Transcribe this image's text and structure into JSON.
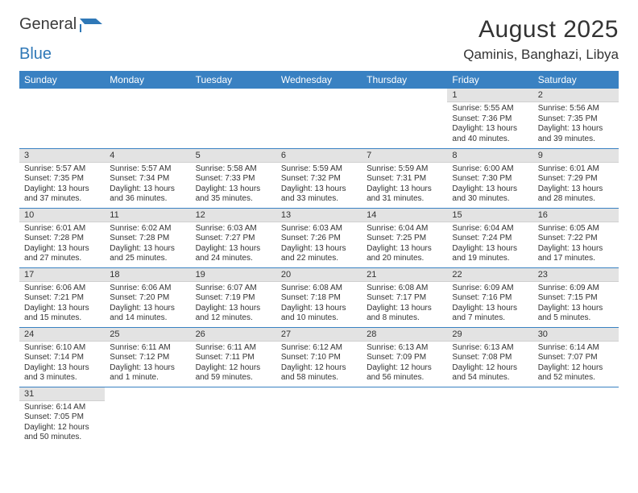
{
  "brand": {
    "text1": "General",
    "text2": "Blue"
  },
  "title": "August 2025",
  "location": "Qaminis, Banghazi, Libya",
  "colors": {
    "header_bg": "#3981c2",
    "header_text": "#ffffff",
    "daynum_bg": "#e3e3e3",
    "row_border": "#3981c2",
    "text": "#333333",
    "brand_blue": "#2f78b7"
  },
  "typography": {
    "title_fontsize": 30,
    "location_fontsize": 17,
    "header_fontsize": 12,
    "daynum_fontsize": 11,
    "detail_fontsize": 10
  },
  "day_headers": [
    "Sunday",
    "Monday",
    "Tuesday",
    "Wednesday",
    "Thursday",
    "Friday",
    "Saturday"
  ],
  "weeks": [
    [
      null,
      null,
      null,
      null,
      null,
      {
        "n": "1",
        "sr": "Sunrise: 5:55 AM",
        "ss": "Sunset: 7:36 PM",
        "d1": "Daylight: 13 hours",
        "d2": "and 40 minutes."
      },
      {
        "n": "2",
        "sr": "Sunrise: 5:56 AM",
        "ss": "Sunset: 7:35 PM",
        "d1": "Daylight: 13 hours",
        "d2": "and 39 minutes."
      }
    ],
    [
      {
        "n": "3",
        "sr": "Sunrise: 5:57 AM",
        "ss": "Sunset: 7:35 PM",
        "d1": "Daylight: 13 hours",
        "d2": "and 37 minutes."
      },
      {
        "n": "4",
        "sr": "Sunrise: 5:57 AM",
        "ss": "Sunset: 7:34 PM",
        "d1": "Daylight: 13 hours",
        "d2": "and 36 minutes."
      },
      {
        "n": "5",
        "sr": "Sunrise: 5:58 AM",
        "ss": "Sunset: 7:33 PM",
        "d1": "Daylight: 13 hours",
        "d2": "and 35 minutes."
      },
      {
        "n": "6",
        "sr": "Sunrise: 5:59 AM",
        "ss": "Sunset: 7:32 PM",
        "d1": "Daylight: 13 hours",
        "d2": "and 33 minutes."
      },
      {
        "n": "7",
        "sr": "Sunrise: 5:59 AM",
        "ss": "Sunset: 7:31 PM",
        "d1": "Daylight: 13 hours",
        "d2": "and 31 minutes."
      },
      {
        "n": "8",
        "sr": "Sunrise: 6:00 AM",
        "ss": "Sunset: 7:30 PM",
        "d1": "Daylight: 13 hours",
        "d2": "and 30 minutes."
      },
      {
        "n": "9",
        "sr": "Sunrise: 6:01 AM",
        "ss": "Sunset: 7:29 PM",
        "d1": "Daylight: 13 hours",
        "d2": "and 28 minutes."
      }
    ],
    [
      {
        "n": "10",
        "sr": "Sunrise: 6:01 AM",
        "ss": "Sunset: 7:28 PM",
        "d1": "Daylight: 13 hours",
        "d2": "and 27 minutes."
      },
      {
        "n": "11",
        "sr": "Sunrise: 6:02 AM",
        "ss": "Sunset: 7:28 PM",
        "d1": "Daylight: 13 hours",
        "d2": "and 25 minutes."
      },
      {
        "n": "12",
        "sr": "Sunrise: 6:03 AM",
        "ss": "Sunset: 7:27 PM",
        "d1": "Daylight: 13 hours",
        "d2": "and 24 minutes."
      },
      {
        "n": "13",
        "sr": "Sunrise: 6:03 AM",
        "ss": "Sunset: 7:26 PM",
        "d1": "Daylight: 13 hours",
        "d2": "and 22 minutes."
      },
      {
        "n": "14",
        "sr": "Sunrise: 6:04 AM",
        "ss": "Sunset: 7:25 PM",
        "d1": "Daylight: 13 hours",
        "d2": "and 20 minutes."
      },
      {
        "n": "15",
        "sr": "Sunrise: 6:04 AM",
        "ss": "Sunset: 7:24 PM",
        "d1": "Daylight: 13 hours",
        "d2": "and 19 minutes."
      },
      {
        "n": "16",
        "sr": "Sunrise: 6:05 AM",
        "ss": "Sunset: 7:22 PM",
        "d1": "Daylight: 13 hours",
        "d2": "and 17 minutes."
      }
    ],
    [
      {
        "n": "17",
        "sr": "Sunrise: 6:06 AM",
        "ss": "Sunset: 7:21 PM",
        "d1": "Daylight: 13 hours",
        "d2": "and 15 minutes."
      },
      {
        "n": "18",
        "sr": "Sunrise: 6:06 AM",
        "ss": "Sunset: 7:20 PM",
        "d1": "Daylight: 13 hours",
        "d2": "and 14 minutes."
      },
      {
        "n": "19",
        "sr": "Sunrise: 6:07 AM",
        "ss": "Sunset: 7:19 PM",
        "d1": "Daylight: 13 hours",
        "d2": "and 12 minutes."
      },
      {
        "n": "20",
        "sr": "Sunrise: 6:08 AM",
        "ss": "Sunset: 7:18 PM",
        "d1": "Daylight: 13 hours",
        "d2": "and 10 minutes."
      },
      {
        "n": "21",
        "sr": "Sunrise: 6:08 AM",
        "ss": "Sunset: 7:17 PM",
        "d1": "Daylight: 13 hours",
        "d2": "and 8 minutes."
      },
      {
        "n": "22",
        "sr": "Sunrise: 6:09 AM",
        "ss": "Sunset: 7:16 PM",
        "d1": "Daylight: 13 hours",
        "d2": "and 7 minutes."
      },
      {
        "n": "23",
        "sr": "Sunrise: 6:09 AM",
        "ss": "Sunset: 7:15 PM",
        "d1": "Daylight: 13 hours",
        "d2": "and 5 minutes."
      }
    ],
    [
      {
        "n": "24",
        "sr": "Sunrise: 6:10 AM",
        "ss": "Sunset: 7:14 PM",
        "d1": "Daylight: 13 hours",
        "d2": "and 3 minutes."
      },
      {
        "n": "25",
        "sr": "Sunrise: 6:11 AM",
        "ss": "Sunset: 7:12 PM",
        "d1": "Daylight: 13 hours",
        "d2": "and 1 minute."
      },
      {
        "n": "26",
        "sr": "Sunrise: 6:11 AM",
        "ss": "Sunset: 7:11 PM",
        "d1": "Daylight: 12 hours",
        "d2": "and 59 minutes."
      },
      {
        "n": "27",
        "sr": "Sunrise: 6:12 AM",
        "ss": "Sunset: 7:10 PM",
        "d1": "Daylight: 12 hours",
        "d2": "and 58 minutes."
      },
      {
        "n": "28",
        "sr": "Sunrise: 6:13 AM",
        "ss": "Sunset: 7:09 PM",
        "d1": "Daylight: 12 hours",
        "d2": "and 56 minutes."
      },
      {
        "n": "29",
        "sr": "Sunrise: 6:13 AM",
        "ss": "Sunset: 7:08 PM",
        "d1": "Daylight: 12 hours",
        "d2": "and 54 minutes."
      },
      {
        "n": "30",
        "sr": "Sunrise: 6:14 AM",
        "ss": "Sunset: 7:07 PM",
        "d1": "Daylight: 12 hours",
        "d2": "and 52 minutes."
      }
    ],
    [
      {
        "n": "31",
        "sr": "Sunrise: 6:14 AM",
        "ss": "Sunset: 7:05 PM",
        "d1": "Daylight: 12 hours",
        "d2": "and 50 minutes."
      },
      null,
      null,
      null,
      null,
      null,
      null
    ]
  ]
}
